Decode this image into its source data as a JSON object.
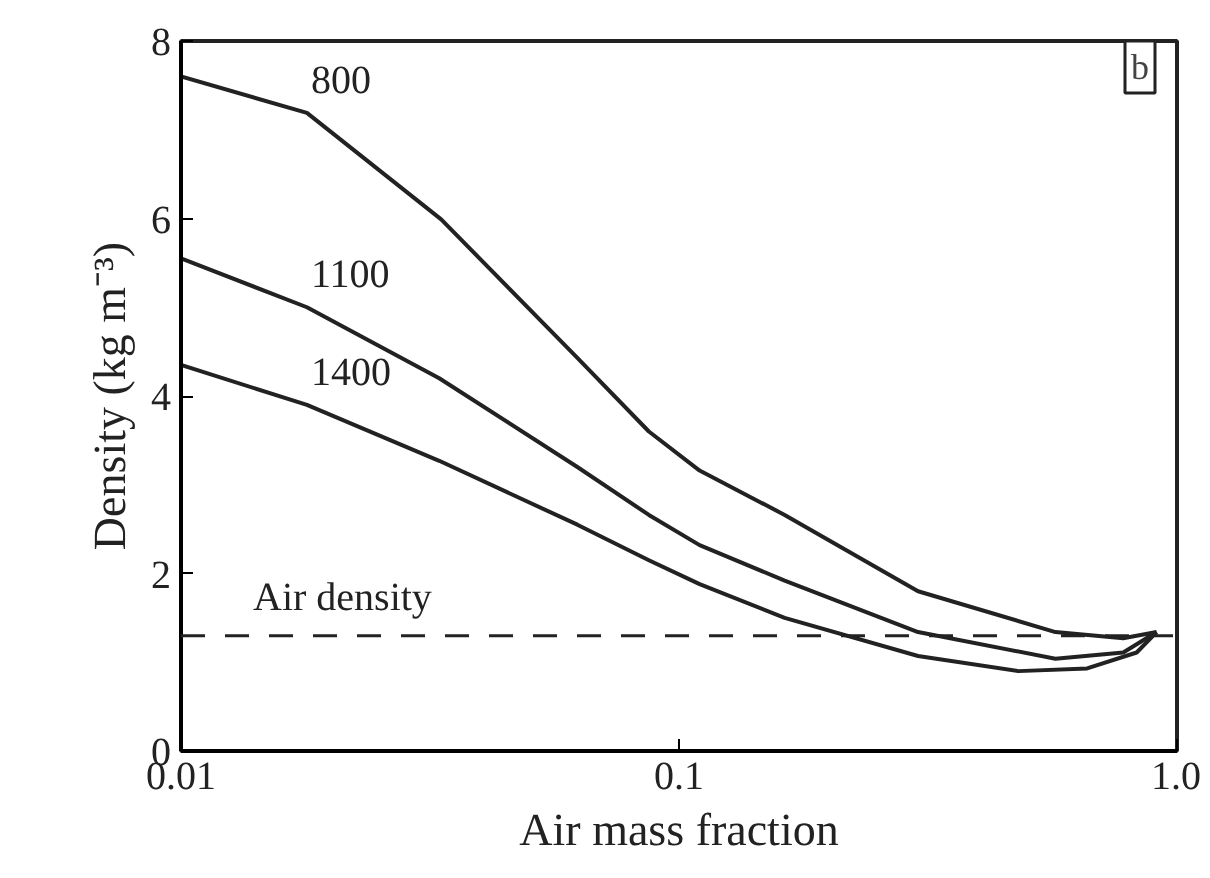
{
  "chart_data": {
    "type": "line",
    "xlabel": "Air mass fraction",
    "ylabel": "Density (kg m⁻³)",
    "log": "x",
    "xlim": [
      0.01,
      1.0
    ],
    "xticks": [
      0.01,
      0.1,
      {
        "value": 1.0,
        "label": "1.0"
      }
    ],
    "ylim": [
      0,
      8
    ],
    "yticks": [
      0,
      2,
      4,
      6,
      8
    ],
    "grid": false,
    "legend": false,
    "marker": "none",
    "line_style": "solid",
    "series": [
      {
        "name": "800",
        "color": "#222222",
        "x": [
          0.01,
          0.0179,
          0.0333,
          0.0625,
          0.087,
          0.11,
          0.163,
          0.302,
          0.57,
          0.78,
          0.91
        ],
        "values": [
          7.6,
          7.19,
          5.99,
          4.43,
          3.6,
          3.16,
          2.66,
          1.8,
          1.34,
          1.27,
          1.34
        ]
      },
      {
        "name": "1100",
        "color": "#222222",
        "x": [
          0.01,
          0.0179,
          0.033,
          0.0625,
          0.087,
          0.11,
          0.163,
          0.302,
          0.57,
          0.78,
          0.91
        ],
        "values": [
          5.55,
          5.0,
          4.2,
          3.2,
          2.66,
          2.32,
          1.92,
          1.34,
          1.04,
          1.11,
          1.34
        ]
      },
      {
        "name": "1400",
        "color": "#222222",
        "x": [
          0.01,
          0.0179,
          0.033,
          0.0625,
          0.087,
          0.11,
          0.163,
          0.302,
          0.48,
          0.66,
          0.83,
          0.91
        ],
        "values": [
          4.35,
          3.9,
          3.27,
          2.55,
          2.15,
          1.88,
          1.5,
          1.07,
          0.9,
          0.93,
          1.11,
          1.34
        ]
      }
    ],
    "ref_lines": [
      {
        "axis": "y",
        "value": 1.3,
        "label": "Air density",
        "line_style": "dashed",
        "color": "#222222"
      }
    ],
    "annotations": [
      "b"
    ]
  }
}
